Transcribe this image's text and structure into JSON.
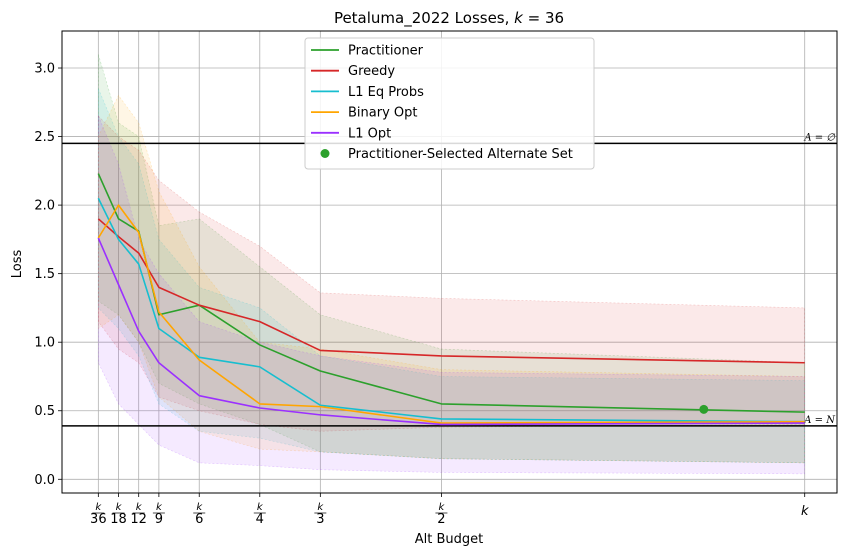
{
  "chart_data": {
    "type": "line",
    "title": "Petaluma_2022 Losses, k = 36",
    "title_parts": {
      "prefix": "Petaluma_2022 Losses, ",
      "var": "k",
      "suffix": " = 36"
    },
    "xlabel": "Alt Budget",
    "ylabel": "Loss",
    "ylim": [
      -0.1,
      3.27
    ],
    "yticks": [
      0.0,
      0.5,
      1.0,
      1.5,
      2.0,
      2.5,
      3.0
    ],
    "ytick_labels": [
      "0.0",
      "0.5",
      "1.0",
      "1.5",
      "2.0",
      "2.5",
      "3.0"
    ],
    "xlim": [
      -0.8,
      37.6
    ],
    "x": [
      1,
      2,
      3,
      4,
      6,
      9,
      12,
      18,
      36
    ],
    "xticks": [
      {
        "x": 1,
        "num": "k",
        "den": "36"
      },
      {
        "x": 2,
        "num": "k",
        "den": "18"
      },
      {
        "x": 3,
        "num": "k",
        "den": "12"
      },
      {
        "x": 4,
        "num": "k",
        "den": "9"
      },
      {
        "x": 6,
        "num": "k",
        "den": "6"
      },
      {
        "x": 9,
        "num": "k",
        "den": "4"
      },
      {
        "x": 12,
        "num": "k",
        "den": "3"
      },
      {
        "x": 18,
        "num": "k",
        "den": "2"
      },
      {
        "x": 36,
        "num": "k",
        "den": ""
      }
    ],
    "grid": true,
    "legend_position": "top-center",
    "reference_lines": [
      {
        "y": 2.45,
        "label": "A = ∅"
      },
      {
        "y": 0.39,
        "label": "A = N"
      }
    ],
    "series": [
      {
        "name": "Practitioner",
        "color": "#2ca02c",
        "values": [
          2.23,
          1.9,
          1.81,
          1.2,
          1.27,
          0.98,
          0.79,
          0.55,
          0.49
        ],
        "lower": [
          1.3,
          1.2,
          1.0,
          0.7,
          0.55,
          0.4,
          0.2,
          0.15,
          0.12
        ],
        "upper": [
          3.1,
          2.6,
          2.5,
          1.85,
          1.9,
          1.55,
          1.2,
          0.95,
          0.85
        ]
      },
      {
        "name": "Greedy",
        "color": "#d62728",
        "values": [
          1.9,
          1.77,
          1.65,
          1.4,
          1.27,
          1.15,
          0.94,
          0.9,
          0.85
        ],
        "lower": [
          1.15,
          0.95,
          0.85,
          0.6,
          0.5,
          0.4,
          0.35,
          0.38,
          0.4
        ],
        "upper": [
          2.65,
          2.5,
          2.4,
          2.18,
          1.95,
          1.7,
          1.36,
          1.32,
          1.25
        ]
      },
      {
        "name": "L1 Eq Probs",
        "color": "#17becf",
        "values": [
          2.05,
          1.75,
          1.57,
          1.1,
          0.89,
          0.82,
          0.54,
          0.44,
          0.42
        ],
        "lower": [
          1.25,
          1.1,
          0.9,
          0.55,
          0.35,
          0.3,
          0.2,
          0.15,
          0.12
        ],
        "upper": [
          2.85,
          2.5,
          2.3,
          1.75,
          1.4,
          1.25,
          0.9,
          0.75,
          0.72
        ]
      },
      {
        "name": "Binary Opt",
        "color": "#ffa500",
        "values": [
          1.76,
          2.0,
          1.8,
          1.22,
          0.87,
          0.55,
          0.53,
          0.41,
          0.42
        ],
        "lower": [
          1.1,
          1.2,
          1.0,
          0.6,
          0.35,
          0.22,
          0.2,
          0.15,
          0.12
        ],
        "upper": [
          2.5,
          2.8,
          2.6,
          2.1,
          1.55,
          1.0,
          0.95,
          0.8,
          0.75
        ]
      },
      {
        "name": "L1 Opt",
        "color": "#9b30ff",
        "values": [
          1.76,
          1.42,
          1.08,
          0.85,
          0.61,
          0.52,
          0.47,
          0.4,
          0.41
        ],
        "lower": [
          0.85,
          0.55,
          0.4,
          0.25,
          0.12,
          0.1,
          0.07,
          0.05,
          0.04
        ],
        "upper": [
          2.65,
          2.3,
          1.75,
          1.5,
          1.15,
          1.0,
          0.9,
          0.78,
          0.75
        ]
      }
    ],
    "points": [
      {
        "name": "Practitioner-Selected Alternate Set",
        "color": "#2ca02c",
        "x": 31,
        "y": 0.51
      }
    ]
  }
}
